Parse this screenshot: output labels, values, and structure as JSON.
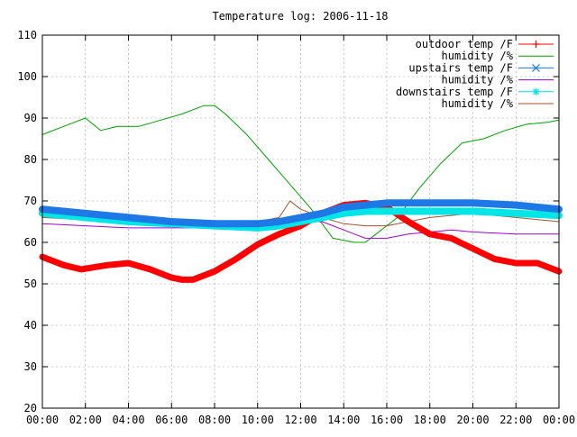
{
  "chart_data": {
    "type": "line",
    "title": "Temperature log: 2006-11-18",
    "xlabel": "",
    "ylabel": "",
    "xlim": [
      0,
      24
    ],
    "ylim": [
      20,
      110
    ],
    "x_ticks": [
      {
        "value": 0,
        "label": "00:00"
      },
      {
        "value": 2,
        "label": "02:00"
      },
      {
        "value": 4,
        "label": "04:00"
      },
      {
        "value": 6,
        "label": "06:00"
      },
      {
        "value": 8,
        "label": "08:00"
      },
      {
        "value": 10,
        "label": "10:00"
      },
      {
        "value": 12,
        "label": "12:00"
      },
      {
        "value": 14,
        "label": "14:00"
      },
      {
        "value": 16,
        "label": "16:00"
      },
      {
        "value": 18,
        "label": "18:00"
      },
      {
        "value": 20,
        "label": "20:00"
      },
      {
        "value": 22,
        "label": "22:00"
      },
      {
        "value": 24,
        "label": "00:00"
      }
    ],
    "y_ticks": [
      20,
      30,
      40,
      50,
      60,
      70,
      80,
      90,
      100,
      110
    ],
    "grid": true,
    "legend_position": "top-right",
    "series": [
      {
        "name": "outdoor temp /F",
        "color": "#ff0000",
        "marker": "plus",
        "x": [
          0,
          1,
          1.8,
          3,
          4,
          5,
          6,
          6.5,
          7,
          8,
          9,
          10,
          11,
          12,
          13,
          14,
          15,
          16,
          17,
          18,
          19,
          20,
          21,
          22,
          23,
          24
        ],
        "y": [
          56.5,
          54.5,
          53.5,
          54.5,
          55,
          53.5,
          51.5,
          51,
          51,
          53,
          56,
          59.5,
          62,
          64,
          67,
          69,
          69.5,
          68.5,
          65,
          62,
          61,
          58.5,
          56,
          55,
          55,
          53
        ]
      },
      {
        "name": "humidity /%",
        "color": "#00a000",
        "marker": "none",
        "x": [
          0,
          1,
          2,
          2.7,
          3.5,
          4.5,
          5.5,
          6.5,
          7.5,
          8,
          8.5,
          9.5,
          10.5,
          11.5,
          12.5,
          13.5,
          14.5,
          15,
          15.5,
          16.5,
          17.5,
          18.5,
          19.5,
          20.5,
          21.5,
          22.5,
          23.5,
          24
        ],
        "y": [
          86,
          88,
          90,
          87,
          88,
          88,
          89.5,
          91,
          93,
          93,
          91,
          86,
          80,
          74,
          68,
          61,
          60,
          60,
          62,
          66,
          73,
          79,
          84,
          85,
          87,
          88.5,
          89,
          89.5
        ]
      },
      {
        "name": "upstairs temp /F",
        "color": "#1e78e6",
        "marker": "x",
        "x": [
          0,
          2,
          4,
          6,
          8,
          10,
          11,
          12,
          13,
          14,
          15,
          16,
          18,
          20,
          22,
          24
        ],
        "y": [
          68,
          67,
          66,
          65,
          64.5,
          64.5,
          65,
          66,
          67,
          68.5,
          69,
          69.5,
          69.5,
          69.5,
          69,
          68
        ]
      },
      {
        "name": "humidity /%",
        "color": "#a000d0",
        "marker": "none",
        "x": [
          0,
          2,
          4,
          6,
          8,
          10,
          12,
          13,
          14,
          14.5,
          15,
          16,
          17,
          18,
          19,
          20,
          22,
          24
        ],
        "y": [
          64.5,
          64,
          63.5,
          63.5,
          63.5,
          64,
          65,
          65,
          63,
          62,
          61,
          61,
          62,
          62.5,
          63,
          62.5,
          62,
          62
        ]
      },
      {
        "name": "downstairs temp /F",
        "color": "#00e5e5",
        "marker": "star",
        "x": [
          0,
          2,
          4,
          6,
          8,
          10,
          11,
          12,
          13,
          14,
          15,
          16,
          18,
          20,
          22,
          24
        ],
        "y": [
          67,
          66,
          65,
          64.5,
          64,
          63.5,
          64,
          65,
          66,
          67,
          67.5,
          67.5,
          67.5,
          67.5,
          67,
          66.5
        ]
      },
      {
        "name": "humidity /%",
        "color": "#a0522d",
        "marker": "none",
        "x": [
          0,
          2,
          4,
          6,
          8,
          10,
          11,
          11.5,
          12,
          13,
          14,
          15,
          16,
          17,
          18,
          19,
          20,
          22,
          24
        ],
        "y": [
          66,
          65.5,
          65,
          64.5,
          64.5,
          65,
          66,
          70,
          68,
          66,
          64.5,
          64,
          64,
          65,
          66,
          66.5,
          67,
          66,
          65
        ]
      }
    ]
  }
}
